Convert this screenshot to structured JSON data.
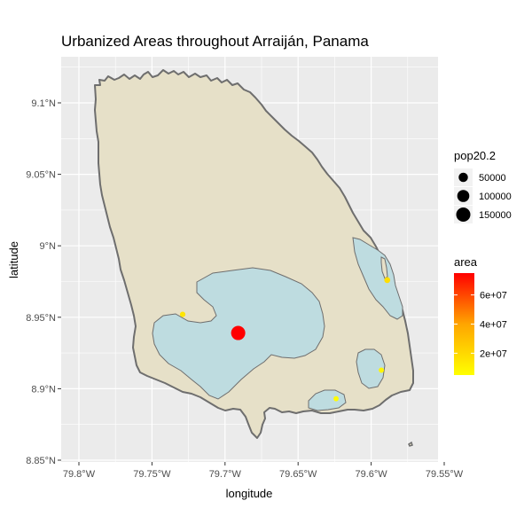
{
  "title": "Urbanized Areas throughout Arraiján, Panama",
  "x_axis": {
    "label": "longitude",
    "ticks": [
      "79.8°W",
      "79.75°W",
      "79.7°W",
      "79.65°W",
      "79.6°W",
      "79.55°W"
    ]
  },
  "y_axis": {
    "label": "latitude",
    "ticks": [
      "9.1°N",
      "9.05°N",
      "9°N",
      "8.95°N",
      "8.9°N",
      "8.85°N"
    ]
  },
  "colors": {
    "panel_background": "#ebebeb",
    "grid": "#ffffff",
    "district_fill": "#e6e0c8",
    "district_outline": "#6e6e6e",
    "urban_fill": "#bedce0",
    "urban_outline": "#6e6e6e",
    "area_low": "#ffff00",
    "area_high": "#ff0000"
  },
  "legend_size": {
    "title": "pop20.2",
    "entries": [
      {
        "label": "50000",
        "value": 50000
      },
      {
        "label": "100000",
        "value": 100000
      },
      {
        "label": "150000",
        "value": 150000
      }
    ]
  },
  "legend_color": {
    "title": "area",
    "labels": [
      "6e+07",
      "4e+07",
      "2e+07"
    ],
    "label_values": [
      60000000,
      40000000,
      20000000
    ],
    "range": [
      5000000,
      75000000
    ]
  },
  "chart_data": {
    "type": "scatter",
    "xlabel": "longitude",
    "ylabel": "latitude",
    "xlim": [
      -79.81,
      -79.545
    ],
    "ylim": [
      -8.845,
      9.13
    ],
    "points": [
      {
        "lon": -79.691,
        "lat": 8.939,
        "pop": 150000,
        "area": 75000000
      },
      {
        "lon": -79.729,
        "lat": 8.952,
        "pop": 9000,
        "area": 15000000
      },
      {
        "lon": -79.589,
        "lat": 8.976,
        "pop": 12000,
        "area": 18000000
      },
      {
        "lon": -79.593,
        "lat": 8.913,
        "pop": 8000,
        "area": 8000000
      },
      {
        "lon": -79.624,
        "lat": 8.893,
        "pop": 7000,
        "area": 6000000
      }
    ]
  }
}
